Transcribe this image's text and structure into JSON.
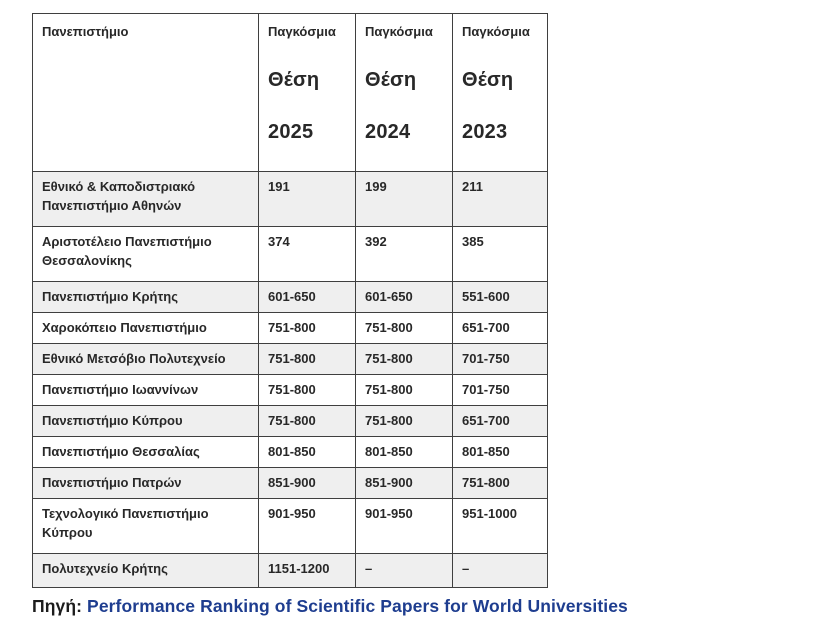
{
  "table": {
    "header": {
      "university": "Πανεπιστήμιο",
      "cols": [
        {
          "top": "Παγκόσμια",
          "mid": "Θέση",
          "year": "2025"
        },
        {
          "top": "Παγκόσμια",
          "mid": "Θέση",
          "year": "2024"
        },
        {
          "top": "Παγκόσμια",
          "mid": "Θέση",
          "year": "2023"
        }
      ]
    },
    "rows": [
      {
        "name": "Εθνικό & Καποδιστριακό Πανεπιστήμιο Αθηνών",
        "r2025": "191",
        "r2024": "199",
        "r2023": "211"
      },
      {
        "name": "Αριστοτέλειο Πανεπιστήμιο Θεσσαλονίκης",
        "r2025": "374",
        "r2024": "392",
        "r2023": "385"
      },
      {
        "name": "Πανεπιστήμιο Κρήτης",
        "r2025": "601-650",
        "r2024": "601-650",
        "r2023": "551-600"
      },
      {
        "name": "Χαροκόπειο Πανεπιστήμιο",
        "r2025": "751-800",
        "r2024": "751-800",
        "r2023": "651-700"
      },
      {
        "name": "Εθνικό Μετσόβιο Πολυτεχνείο",
        "r2025": "751-800",
        "r2024": "751-800",
        "r2023": "701-750"
      },
      {
        "name": "Πανεπιστήμιο Ιωαννίνων",
        "r2025": "751-800",
        "r2024": "751-800",
        "r2023": "701-750"
      },
      {
        "name": "Πανεπιστήμιο Κύπρου",
        "r2025": "751-800",
        "r2024": "751-800",
        "r2023": "651-700"
      },
      {
        "name": "Πανεπιστήμιο Θεσσαλίας",
        "r2025": "801-850",
        "r2024": "801-850",
        "r2023": "801-850"
      },
      {
        "name": "Πανεπιστήμιο Πατρών",
        "r2025": "851-900",
        "r2024": "851-900",
        "r2023": "751-800"
      },
      {
        "name": "Τεχνολογικό Πανεπιστήμιο Κύπρου",
        "r2025": "901-950",
        "r2024": "901-950",
        "r2023": "951-1000"
      },
      {
        "name": "Πολυτεχνείο Κρήτης",
        "r2025": "1151-1200",
        "r2024": "–",
        "r2023": "–"
      }
    ]
  },
  "footer": {
    "source_label": "Πηγή:",
    "source_text": "Performance Ranking of Scientific Papers for World Universities"
  },
  "colors": {
    "row_shade": "#efefef",
    "border": "#3f3f3f",
    "text": "#282828",
    "link_blue": "#1e3d8f"
  }
}
